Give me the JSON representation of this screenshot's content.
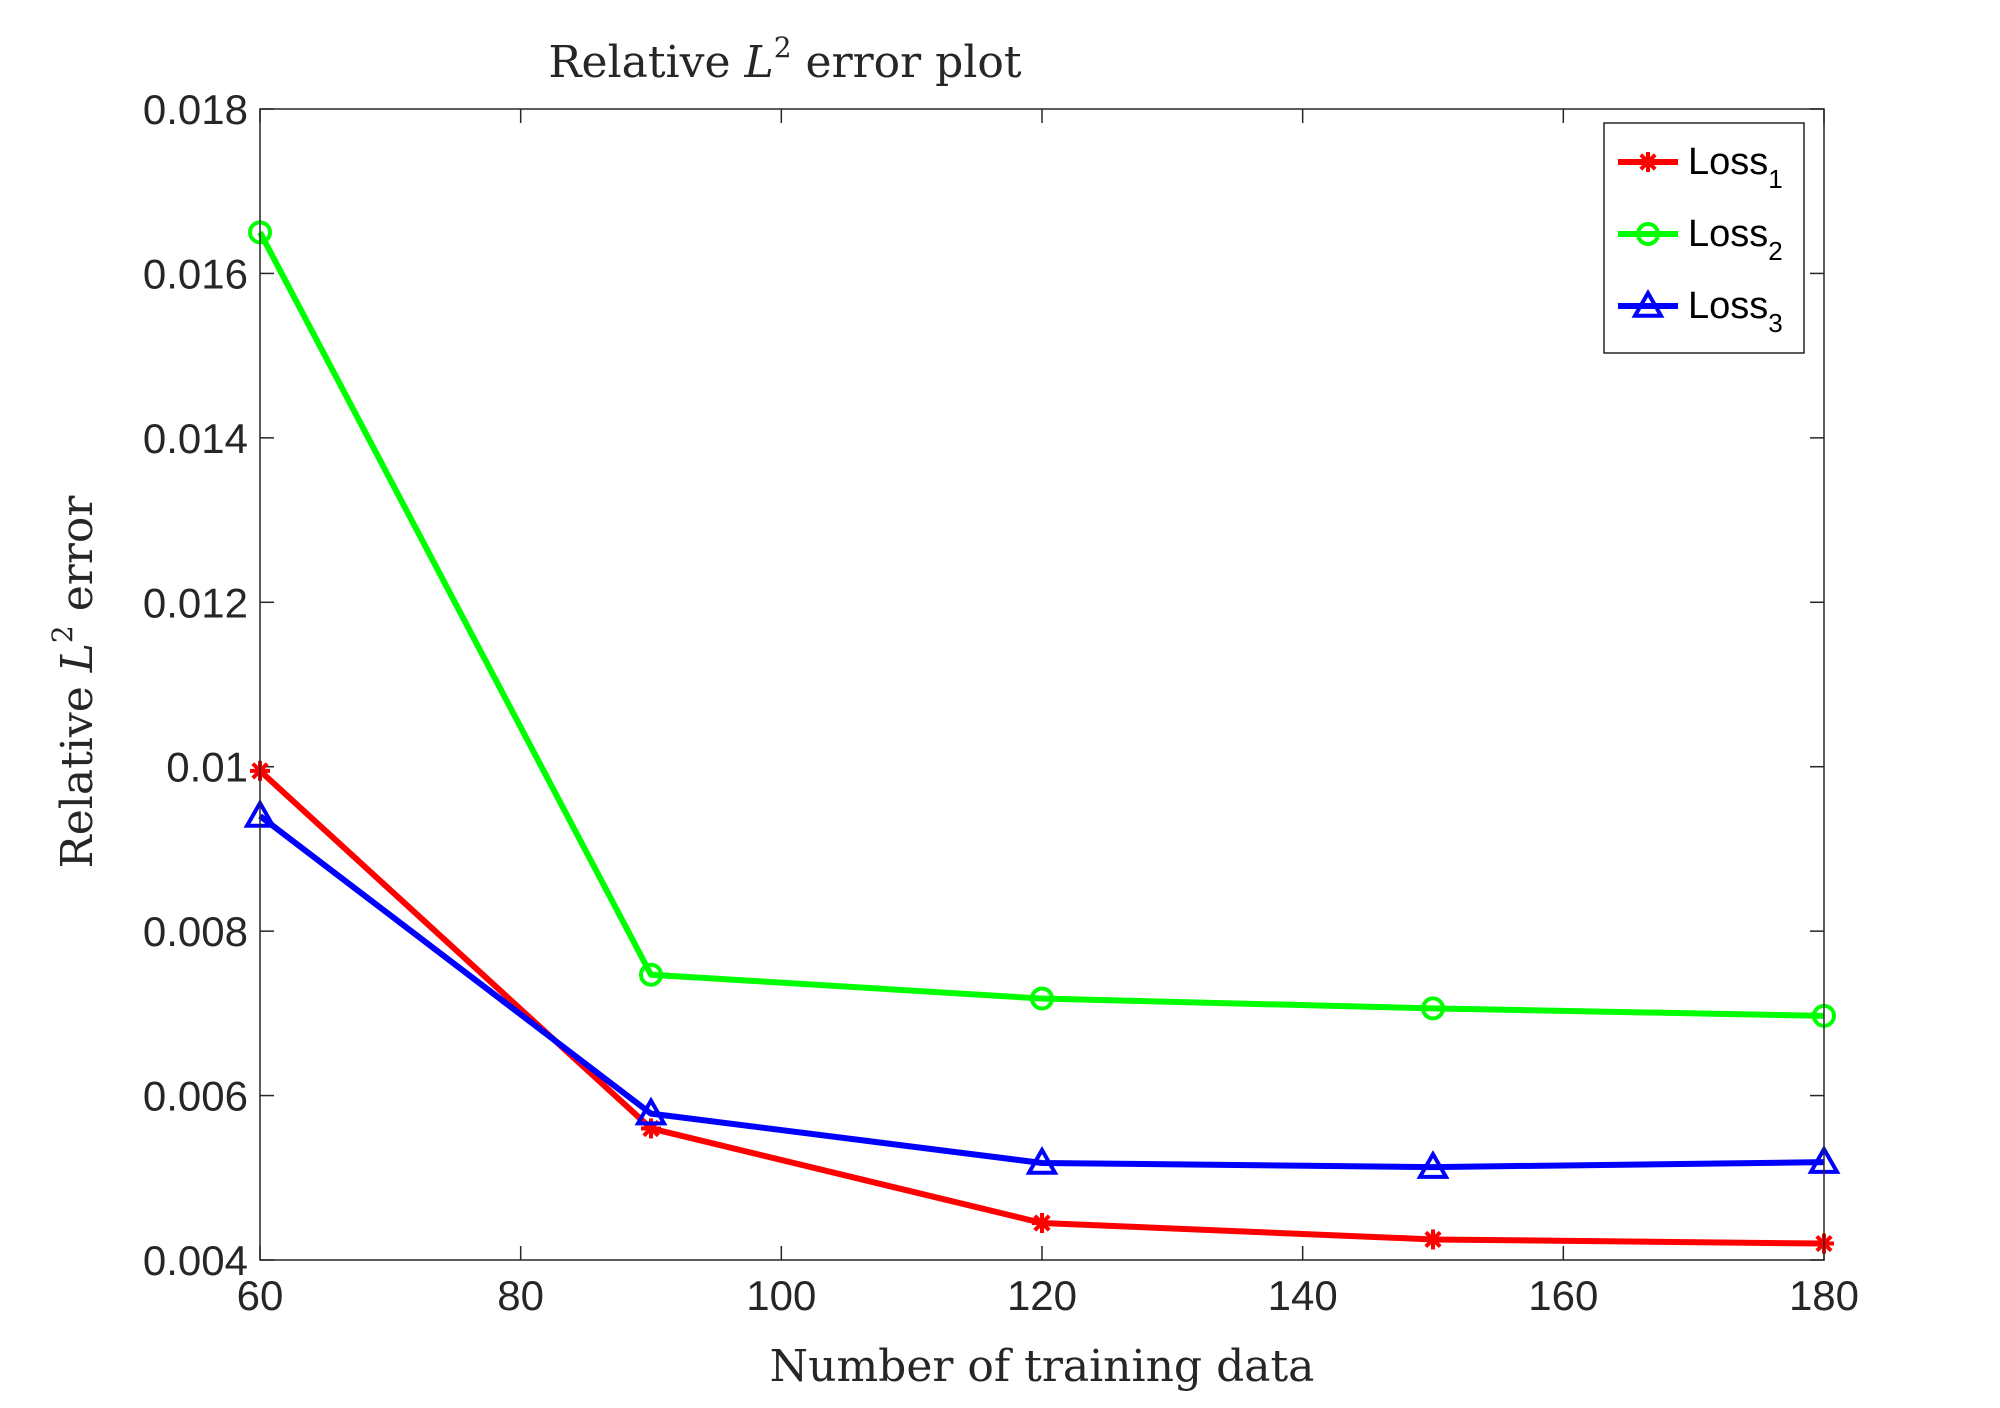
{
  "chart_data": {
    "type": "line",
    "title": {
      "prefix": "Relative ",
      "symbol": "L",
      "superscript": "2",
      "suffix": " error plot"
    },
    "xlabel": "Number of training data",
    "ylabel": {
      "prefix": "Relative ",
      "symbol": "L",
      "superscript": "2",
      "suffix": " error"
    },
    "x": [
      60,
      90,
      120,
      150,
      180
    ],
    "xlim": [
      60,
      180
    ],
    "ylim": [
      0.004,
      0.018
    ],
    "xticks": [
      60,
      80,
      100,
      120,
      140,
      160,
      180
    ],
    "xtick_labels": [
      "60",
      "80",
      "100",
      "120",
      "140",
      "160",
      "180"
    ],
    "yticks": [
      0.004,
      0.006,
      0.008,
      0.01,
      0.012,
      0.014,
      0.016,
      0.018
    ],
    "ytick_labels": [
      "0.004",
      "0.006",
      "0.008",
      "0.01",
      "0.012",
      "0.014",
      "0.016",
      "0.018"
    ],
    "grid": false,
    "legend_position": "top-right",
    "series": [
      {
        "name": "Loss",
        "subscript": "1",
        "color": "#ff0000",
        "marker": "asterisk",
        "values": [
          0.00995,
          0.0056,
          0.00445,
          0.00425,
          0.0042
        ]
      },
      {
        "name": "Loss",
        "subscript": "2",
        "color": "#00ff00",
        "marker": "circle",
        "values": [
          0.0165,
          0.00747,
          0.00718,
          0.00706,
          0.00697
        ]
      },
      {
        "name": "Loss",
        "subscript": "3",
        "color": "#0000ff",
        "marker": "triangle",
        "values": [
          0.0094,
          0.00578,
          0.00518,
          0.00513,
          0.00519
        ]
      }
    ]
  }
}
